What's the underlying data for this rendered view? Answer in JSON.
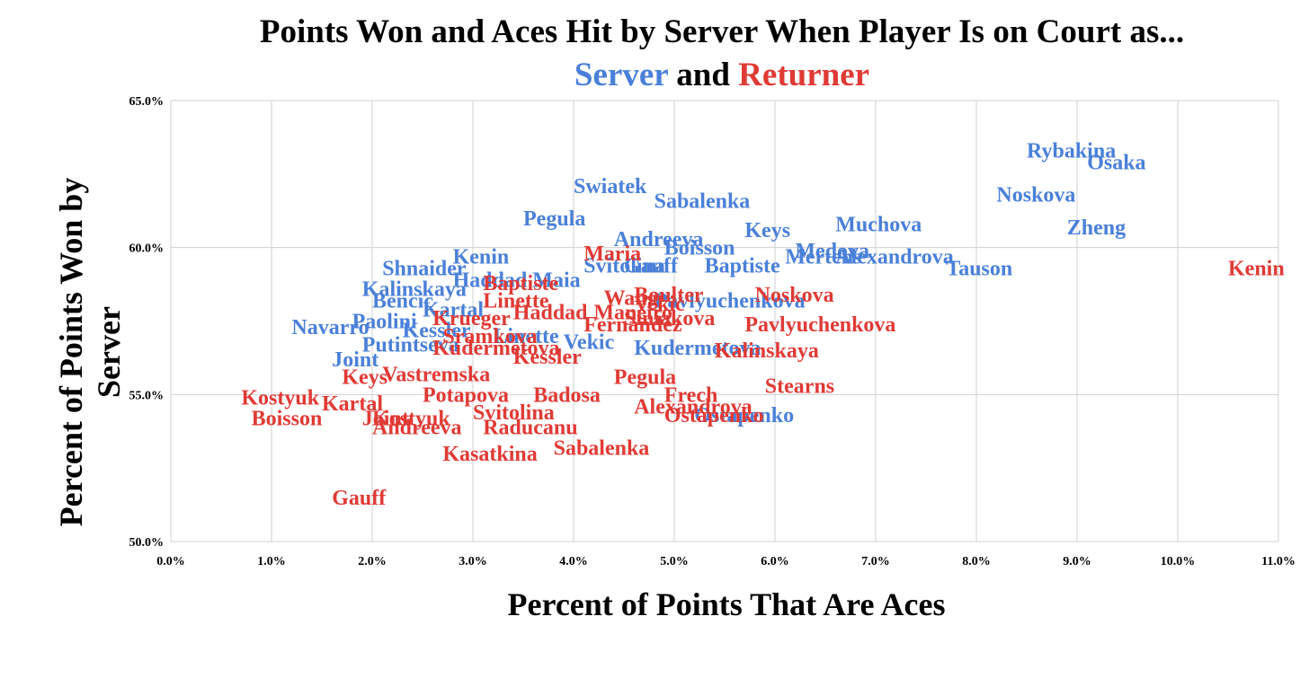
{
  "chart_data": {
    "type": "scatter",
    "title_line1": "Points Won and Aces Hit by Server When Player Is on Court as...",
    "title_line2_parts": [
      "Server",
      "and",
      "Returner"
    ],
    "xlabel": "Percent of Points That Are Aces",
    "ylabel": "Percent of Points Won by Server",
    "xlim": [
      0,
      11
    ],
    "ylim": [
      50,
      65
    ],
    "x_ticks": [
      "0.0%",
      "1.0%",
      "2.0%",
      "3.0%",
      "4.0%",
      "5.0%",
      "6.0%",
      "7.0%",
      "8.0%",
      "9.0%",
      "10.0%",
      "11.0%"
    ],
    "y_ticks": [
      "50.0%",
      "55.0%",
      "60.0%",
      "65.0%"
    ],
    "grid": true,
    "colors": {
      "server": "#4a80d8",
      "returner": "#e03a35"
    },
    "series": [
      {
        "name": "Server",
        "points": [
          {
            "label": "Rybakina",
            "x": 8.5,
            "y": 63.3
          },
          {
            "label": "Osaka",
            "x": 9.1,
            "y": 62.9
          },
          {
            "label": "Noskova",
            "x": 8.2,
            "y": 61.8
          },
          {
            "label": "Zheng",
            "x": 8.9,
            "y": 60.7
          },
          {
            "label": "Swiatek",
            "x": 4.0,
            "y": 62.1
          },
          {
            "label": "Sabalenka",
            "x": 4.8,
            "y": 61.6
          },
          {
            "label": "Pegula",
            "x": 3.5,
            "y": 61.0
          },
          {
            "label": "Muchova",
            "x": 6.6,
            "y": 60.8
          },
          {
            "label": "Keys",
            "x": 5.7,
            "y": 60.6
          },
          {
            "label": "Andreeva",
            "x": 4.4,
            "y": 60.3
          },
          {
            "label": "Boisson",
            "x": 4.9,
            "y": 60.0
          },
          {
            "label": "Medova",
            "x": 6.2,
            "y": 59.9
          },
          {
            "label": "Mertens",
            "x": 6.1,
            "y": 59.7
          },
          {
            "label": "Alexandrova",
            "x": 6.6,
            "y": 59.7
          },
          {
            "label": "Tauson",
            "x": 7.7,
            "y": 59.3
          },
          {
            "label": "Gauff",
            "x": 4.5,
            "y": 59.4
          },
          {
            "label": "Svitolina",
            "x": 4.1,
            "y": 59.4
          },
          {
            "label": "Baptiste",
            "x": 5.3,
            "y": 59.4
          },
          {
            "label": "Kenin",
            "x": 2.8,
            "y": 59.7
          },
          {
            "label": "Shnaider",
            "x": 2.1,
            "y": 59.3
          },
          {
            "label": "Haddad Maia",
            "x": 2.8,
            "y": 58.9
          },
          {
            "label": "Kalinskaya",
            "x": 1.9,
            "y": 58.6
          },
          {
            "label": "Bencic",
            "x": 2.0,
            "y": 58.2
          },
          {
            "label": "Kartal",
            "x": 2.5,
            "y": 57.9
          },
          {
            "label": "Pavlyuchenkova",
            "x": 4.8,
            "y": 58.2
          },
          {
            "label": "Navarro",
            "x": 1.2,
            "y": 57.3
          },
          {
            "label": "Paolini",
            "x": 1.8,
            "y": 57.5
          },
          {
            "label": "Kessler",
            "x": 2.3,
            "y": 57.2
          },
          {
            "label": "Putintseva",
            "x": 1.9,
            "y": 56.7
          },
          {
            "label": "Joint",
            "x": 1.6,
            "y": 56.2
          },
          {
            "label": "Kudermetova",
            "x": 4.6,
            "y": 56.6
          },
          {
            "label": "Ostapenko",
            "x": 5.2,
            "y": 54.3
          },
          {
            "label": "Linette",
            "x": 3.2,
            "y": 57.0
          },
          {
            "label": "Vekic",
            "x": 3.9,
            "y": 56.8
          }
        ]
      },
      {
        "name": "Returner",
        "points": [
          {
            "label": "Kenin",
            "x": 10.5,
            "y": 59.3
          },
          {
            "label": "Maria",
            "x": 4.1,
            "y": 59.8
          },
          {
            "label": "Baptiste",
            "x": 3.1,
            "y": 58.8
          },
          {
            "label": "Boulter",
            "x": 4.6,
            "y": 58.4
          },
          {
            "label": "Noskova",
            "x": 5.8,
            "y": 58.4
          },
          {
            "label": "Linette",
            "x": 3.1,
            "y": 58.2
          },
          {
            "label": "Wang",
            "x": 4.3,
            "y": 58.3
          },
          {
            "label": "Vekic",
            "x": 4.6,
            "y": 58.1
          },
          {
            "label": "Krueger",
            "x": 2.6,
            "y": 57.6
          },
          {
            "label": "Haddad",
            "x": 3.4,
            "y": 57.8
          },
          {
            "label": "Maneiro",
            "x": 4.2,
            "y": 57.8
          },
          {
            "label": "Siniakova",
            "x": 4.5,
            "y": 57.6
          },
          {
            "label": "Fernandez",
            "x": 4.1,
            "y": 57.4
          },
          {
            "label": "Pavlyuchenkova",
            "x": 5.7,
            "y": 57.4
          },
          {
            "label": "Sramkova",
            "x": 2.7,
            "y": 57.0
          },
          {
            "label": "Kalinskaya",
            "x": 5.4,
            "y": 56.5
          },
          {
            "label": "Kudermetova",
            "x": 2.6,
            "y": 56.6
          },
          {
            "label": "Kessler",
            "x": 3.4,
            "y": 56.3
          },
          {
            "label": "Vastremska",
            "x": 2.1,
            "y": 55.7
          },
          {
            "label": "Keys",
            "x": 1.7,
            "y": 55.6
          },
          {
            "label": "Pegula",
            "x": 4.4,
            "y": 55.6
          },
          {
            "label": "Stearns",
            "x": 5.9,
            "y": 55.3
          },
          {
            "label": "Potapova",
            "x": 2.5,
            "y": 55.0
          },
          {
            "label": "Badosa",
            "x": 3.6,
            "y": 55.0
          },
          {
            "label": "Frech",
            "x": 4.9,
            "y": 55.0
          },
          {
            "label": "Kostyuk",
            "x": 0.7,
            "y": 54.9
          },
          {
            "label": "Kartal",
            "x": 1.5,
            "y": 54.7
          },
          {
            "label": "Alexandrova",
            "x": 4.6,
            "y": 54.6
          },
          {
            "label": "Svitolina",
            "x": 3.0,
            "y": 54.4
          },
          {
            "label": "Boisson",
            "x": 0.8,
            "y": 54.2
          },
          {
            "label": "Joint",
            "x": 1.9,
            "y": 54.2
          },
          {
            "label": "Kostyuk",
            "x": 2.0,
            "y": 54.2
          },
          {
            "label": "Raducanu",
            "x": 3.1,
            "y": 53.9
          },
          {
            "label": "Andreeva",
            "x": 2.0,
            "y": 53.9
          },
          {
            "label": "Ostapenko",
            "x": 4.9,
            "y": 54.3
          },
          {
            "label": "Kasatkina",
            "x": 2.7,
            "y": 53.0
          },
          {
            "label": "Sabalenka",
            "x": 3.8,
            "y": 53.2
          },
          {
            "label": "Gauff",
            "x": 1.6,
            "y": 51.5
          }
        ]
      }
    ]
  }
}
